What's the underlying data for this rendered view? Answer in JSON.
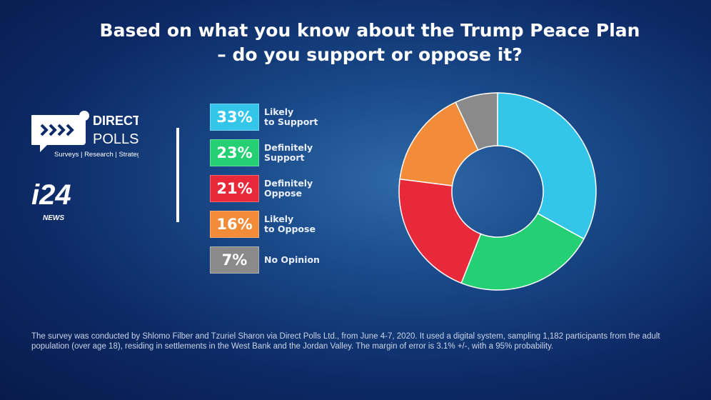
{
  "title_line1": "Based on what you know about the Trump Peace Plan",
  "title_line2": "– do you support or oppose it?",
  "logos": {
    "direct_polls": "DIRECT POLLS",
    "direct_polls_tagline": "Surveys | Research | Strategy",
    "i24": "i24 NEWS"
  },
  "chart_data": {
    "type": "pie",
    "donut": true,
    "title": "Based on what you know about the Trump Peace Plan – do you support or oppose it?",
    "legend_placement": "left",
    "categories": [
      "Likely to Support",
      "Definitely Support",
      "Definitely Oppose",
      "Likely to Oppose",
      "No Opinion"
    ],
    "values": [
      33,
      23,
      21,
      16,
      7
    ],
    "labels": [
      "33%",
      "23%",
      "21%",
      "16%",
      "7%"
    ],
    "label_lines": [
      "Likely\nto Support",
      "Definitely\nSupport",
      "Definitely\nOppose",
      "Likely\nto Oppose",
      "No Opinion"
    ],
    "colors": [
      "#34c6ea",
      "#25cf73",
      "#e8293a",
      "#f28c38",
      "#8a8a8a"
    ]
  },
  "footnote": "The survey was conducted by Shlomo Filber and Tzuriel Sharon via Direct Polls Ltd., from June 4-7, 2020. It used a digital system, sampling 1,182 participants from the adult population (over age 18), residing in settlements in the West Bank and the Jordan Valley. The margin of error is 3.1% +/-, with a 95% probability."
}
